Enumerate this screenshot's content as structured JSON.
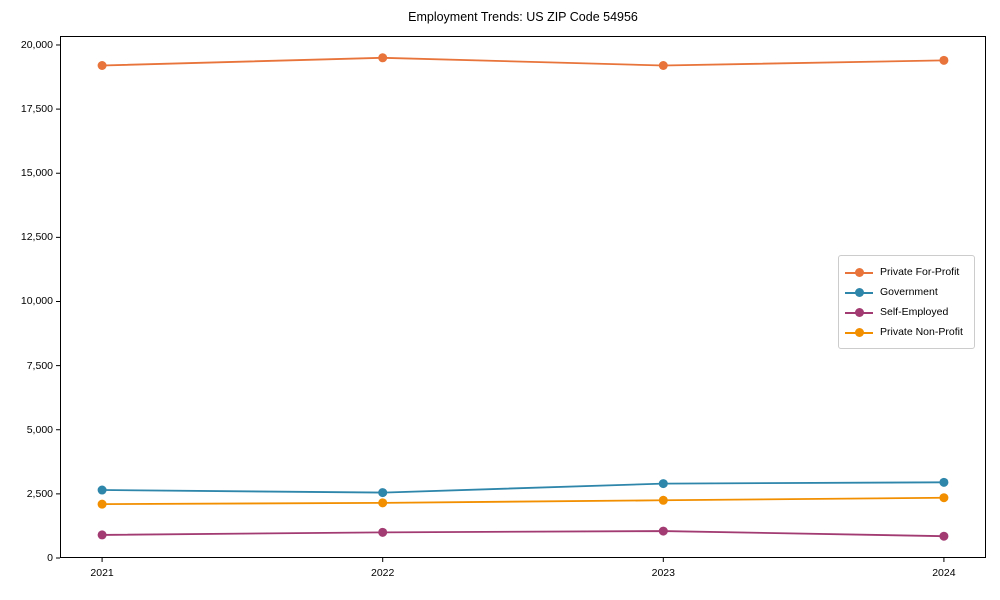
{
  "title": "Employment Trends: US ZIP Code 54956",
  "chart_data": {
    "type": "line",
    "title": "Employment Trends: US ZIP Code 54956",
    "categories": [
      "2021",
      "2022",
      "2023",
      "2024"
    ],
    "series": [
      {
        "name": "Private For-Profit",
        "color": "#E8743B",
        "values": [
          19200,
          19500,
          19200,
          19400
        ]
      },
      {
        "name": "Government",
        "color": "#2E86AB",
        "values": [
          2650,
          2550,
          2900,
          2950
        ]
      },
      {
        "name": "Self-Employed",
        "color": "#A23B72",
        "values": [
          900,
          1000,
          1050,
          850
        ]
      },
      {
        "name": "Private Non-Profit",
        "color": "#F18F01",
        "values": [
          2100,
          2150,
          2250,
          2350
        ]
      }
    ],
    "xlabel": "",
    "ylabel": "",
    "ylim": [
      0,
      20350
    ],
    "yticks": [
      0,
      2500,
      5000,
      7500,
      10000,
      12500,
      15000,
      17500,
      20000
    ],
    "ytick_labels": [
      "0",
      "2,500",
      "5,000",
      "7,500",
      "10,000",
      "12,500",
      "15,000",
      "17,500",
      "20,000"
    ],
    "grid": false,
    "marker": "circle",
    "legend_position": "center-right"
  }
}
